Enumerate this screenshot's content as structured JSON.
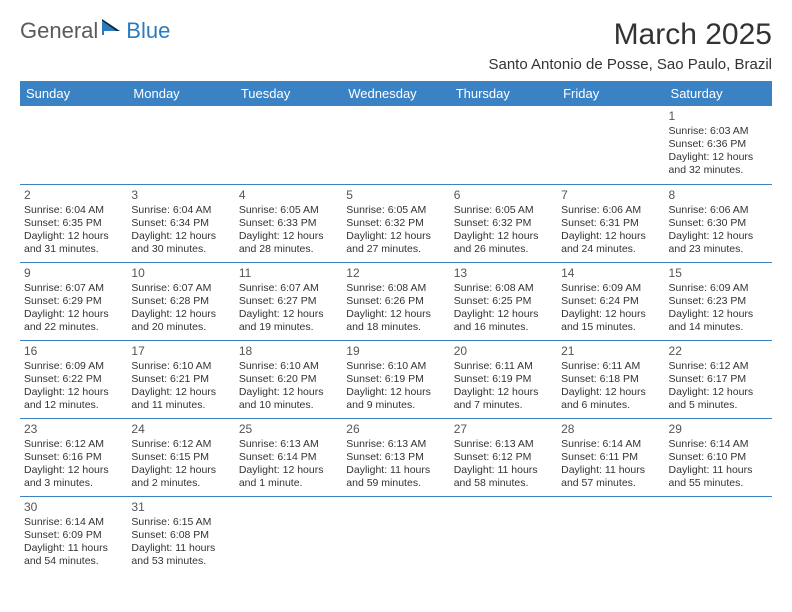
{
  "logo": {
    "text_general": "General",
    "text_blue": "Blue",
    "icon_color": "#2b7bbf"
  },
  "title": "March 2025",
  "location": "Santo Antonio de Posse, Sao Paulo, Brazil",
  "colors": {
    "header_bg": "#3b82c4",
    "header_text": "#ffffff",
    "border": "#3b82c4",
    "body_text": "#333333",
    "daynum": "#555555"
  },
  "day_headers": [
    "Sunday",
    "Monday",
    "Tuesday",
    "Wednesday",
    "Thursday",
    "Friday",
    "Saturday"
  ],
  "weeks": [
    [
      null,
      null,
      null,
      null,
      null,
      null,
      {
        "n": "1",
        "sr": "Sunrise: 6:03 AM",
        "ss": "Sunset: 6:36 PM",
        "dl1": "Daylight: 12 hours",
        "dl2": "and 32 minutes."
      }
    ],
    [
      {
        "n": "2",
        "sr": "Sunrise: 6:04 AM",
        "ss": "Sunset: 6:35 PM",
        "dl1": "Daylight: 12 hours",
        "dl2": "and 31 minutes."
      },
      {
        "n": "3",
        "sr": "Sunrise: 6:04 AM",
        "ss": "Sunset: 6:34 PM",
        "dl1": "Daylight: 12 hours",
        "dl2": "and 30 minutes."
      },
      {
        "n": "4",
        "sr": "Sunrise: 6:05 AM",
        "ss": "Sunset: 6:33 PM",
        "dl1": "Daylight: 12 hours",
        "dl2": "and 28 minutes."
      },
      {
        "n": "5",
        "sr": "Sunrise: 6:05 AM",
        "ss": "Sunset: 6:32 PM",
        "dl1": "Daylight: 12 hours",
        "dl2": "and 27 minutes."
      },
      {
        "n": "6",
        "sr": "Sunrise: 6:05 AM",
        "ss": "Sunset: 6:32 PM",
        "dl1": "Daylight: 12 hours",
        "dl2": "and 26 minutes."
      },
      {
        "n": "7",
        "sr": "Sunrise: 6:06 AM",
        "ss": "Sunset: 6:31 PM",
        "dl1": "Daylight: 12 hours",
        "dl2": "and 24 minutes."
      },
      {
        "n": "8",
        "sr": "Sunrise: 6:06 AM",
        "ss": "Sunset: 6:30 PM",
        "dl1": "Daylight: 12 hours",
        "dl2": "and 23 minutes."
      }
    ],
    [
      {
        "n": "9",
        "sr": "Sunrise: 6:07 AM",
        "ss": "Sunset: 6:29 PM",
        "dl1": "Daylight: 12 hours",
        "dl2": "and 22 minutes."
      },
      {
        "n": "10",
        "sr": "Sunrise: 6:07 AM",
        "ss": "Sunset: 6:28 PM",
        "dl1": "Daylight: 12 hours",
        "dl2": "and 20 minutes."
      },
      {
        "n": "11",
        "sr": "Sunrise: 6:07 AM",
        "ss": "Sunset: 6:27 PM",
        "dl1": "Daylight: 12 hours",
        "dl2": "and 19 minutes."
      },
      {
        "n": "12",
        "sr": "Sunrise: 6:08 AM",
        "ss": "Sunset: 6:26 PM",
        "dl1": "Daylight: 12 hours",
        "dl2": "and 18 minutes."
      },
      {
        "n": "13",
        "sr": "Sunrise: 6:08 AM",
        "ss": "Sunset: 6:25 PM",
        "dl1": "Daylight: 12 hours",
        "dl2": "and 16 minutes."
      },
      {
        "n": "14",
        "sr": "Sunrise: 6:09 AM",
        "ss": "Sunset: 6:24 PM",
        "dl1": "Daylight: 12 hours",
        "dl2": "and 15 minutes."
      },
      {
        "n": "15",
        "sr": "Sunrise: 6:09 AM",
        "ss": "Sunset: 6:23 PM",
        "dl1": "Daylight: 12 hours",
        "dl2": "and 14 minutes."
      }
    ],
    [
      {
        "n": "16",
        "sr": "Sunrise: 6:09 AM",
        "ss": "Sunset: 6:22 PM",
        "dl1": "Daylight: 12 hours",
        "dl2": "and 12 minutes."
      },
      {
        "n": "17",
        "sr": "Sunrise: 6:10 AM",
        "ss": "Sunset: 6:21 PM",
        "dl1": "Daylight: 12 hours",
        "dl2": "and 11 minutes."
      },
      {
        "n": "18",
        "sr": "Sunrise: 6:10 AM",
        "ss": "Sunset: 6:20 PM",
        "dl1": "Daylight: 12 hours",
        "dl2": "and 10 minutes."
      },
      {
        "n": "19",
        "sr": "Sunrise: 6:10 AM",
        "ss": "Sunset: 6:19 PM",
        "dl1": "Daylight: 12 hours",
        "dl2": "and 9 minutes."
      },
      {
        "n": "20",
        "sr": "Sunrise: 6:11 AM",
        "ss": "Sunset: 6:19 PM",
        "dl1": "Daylight: 12 hours",
        "dl2": "and 7 minutes."
      },
      {
        "n": "21",
        "sr": "Sunrise: 6:11 AM",
        "ss": "Sunset: 6:18 PM",
        "dl1": "Daylight: 12 hours",
        "dl2": "and 6 minutes."
      },
      {
        "n": "22",
        "sr": "Sunrise: 6:12 AM",
        "ss": "Sunset: 6:17 PM",
        "dl1": "Daylight: 12 hours",
        "dl2": "and 5 minutes."
      }
    ],
    [
      {
        "n": "23",
        "sr": "Sunrise: 6:12 AM",
        "ss": "Sunset: 6:16 PM",
        "dl1": "Daylight: 12 hours",
        "dl2": "and 3 minutes."
      },
      {
        "n": "24",
        "sr": "Sunrise: 6:12 AM",
        "ss": "Sunset: 6:15 PM",
        "dl1": "Daylight: 12 hours",
        "dl2": "and 2 minutes."
      },
      {
        "n": "25",
        "sr": "Sunrise: 6:13 AM",
        "ss": "Sunset: 6:14 PM",
        "dl1": "Daylight: 12 hours",
        "dl2": "and 1 minute."
      },
      {
        "n": "26",
        "sr": "Sunrise: 6:13 AM",
        "ss": "Sunset: 6:13 PM",
        "dl1": "Daylight: 11 hours",
        "dl2": "and 59 minutes."
      },
      {
        "n": "27",
        "sr": "Sunrise: 6:13 AM",
        "ss": "Sunset: 6:12 PM",
        "dl1": "Daylight: 11 hours",
        "dl2": "and 58 minutes."
      },
      {
        "n": "28",
        "sr": "Sunrise: 6:14 AM",
        "ss": "Sunset: 6:11 PM",
        "dl1": "Daylight: 11 hours",
        "dl2": "and 57 minutes."
      },
      {
        "n": "29",
        "sr": "Sunrise: 6:14 AM",
        "ss": "Sunset: 6:10 PM",
        "dl1": "Daylight: 11 hours",
        "dl2": "and 55 minutes."
      }
    ],
    [
      {
        "n": "30",
        "sr": "Sunrise: 6:14 AM",
        "ss": "Sunset: 6:09 PM",
        "dl1": "Daylight: 11 hours",
        "dl2": "and 54 minutes."
      },
      {
        "n": "31",
        "sr": "Sunrise: 6:15 AM",
        "ss": "Sunset: 6:08 PM",
        "dl1": "Daylight: 11 hours",
        "dl2": "and 53 minutes."
      },
      null,
      null,
      null,
      null,
      null
    ]
  ]
}
